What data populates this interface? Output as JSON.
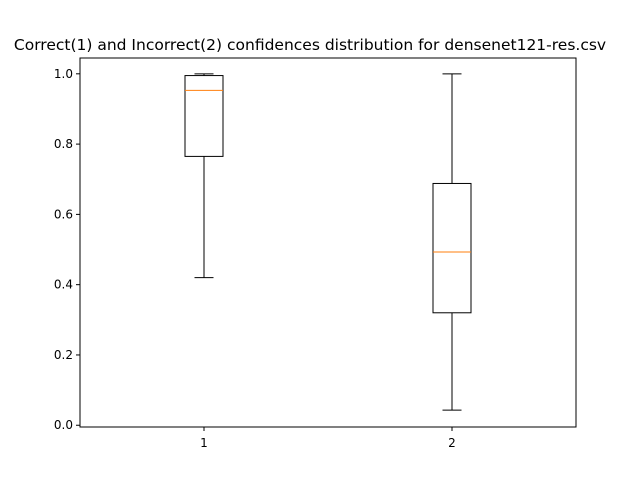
{
  "chart_data": {
    "type": "boxplot",
    "title": "Correct(1) and Incorrect(2) confidences distribution for densenet121-res.csv",
    "xlabel": "",
    "ylabel": "",
    "categories": [
      "1",
      "2"
    ],
    "boxes": [
      {
        "label": "1",
        "whisker_low": 0.42,
        "q1": 0.765,
        "median": 0.953,
        "q3": 0.995,
        "whisker_high": 1.0
      },
      {
        "label": "2",
        "whisker_low": 0.043,
        "q1": 0.32,
        "median": 0.493,
        "q3": 0.688,
        "whisker_high": 1.0
      }
    ],
    "ylim": [
      -0.005,
      1.045
    ],
    "yticks": [
      "0.0",
      "0.2",
      "0.4",
      "0.6",
      "0.8",
      "1.0"
    ],
    "grid": false,
    "colors": {
      "box": "#000000",
      "median": "#ff7f0e"
    }
  }
}
